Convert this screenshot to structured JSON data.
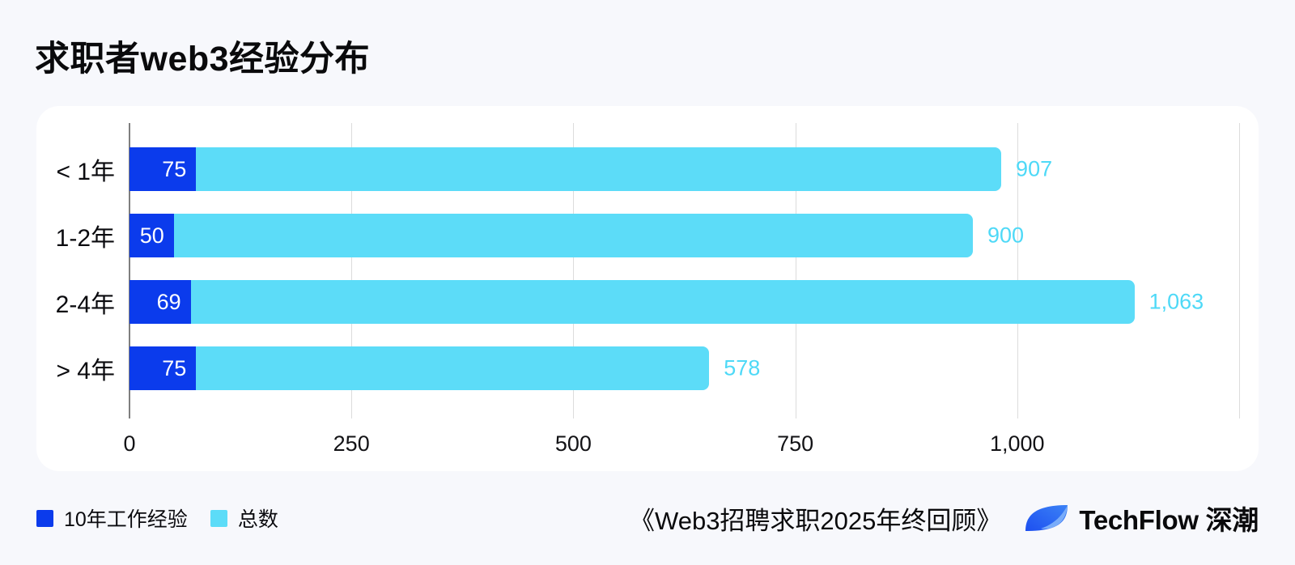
{
  "page": {
    "background": "#F7F8FC",
    "card_background": "#FFFFFF"
  },
  "header": {
    "title": "求职者web3经验分布"
  },
  "chart_data": {
    "type": "bar",
    "orientation": "horizontal",
    "stacked": true,
    "title": "求职者web3经验分布",
    "categories": [
      "< 1年",
      "1-2年",
      "2-4年",
      "> 4年"
    ],
    "series": [
      {
        "name": "10年工作经验",
        "color": "#0B3BEC",
        "values": [
          75,
          50,
          69,
          75
        ],
        "labels": [
          "75",
          "50",
          "69",
          "75"
        ],
        "label_color": "#FFFFFF"
      },
      {
        "name": "总数",
        "color": "#5CDCF8",
        "values": [
          907,
          900,
          1063,
          578
        ],
        "labels": [
          "907",
          "900",
          "1,063",
          "578"
        ],
        "label_color": "#4ED9F7"
      }
    ],
    "xlim": [
      0,
      1250
    ],
    "gridlines": [
      0,
      250,
      500,
      750,
      1000,
      1250
    ],
    "xticks": [
      {
        "value": 0,
        "label": "0"
      },
      {
        "value": 250,
        "label": "250"
      },
      {
        "value": 500,
        "label": "500"
      },
      {
        "value": 750,
        "label": "750"
      },
      {
        "value": 1000,
        "label": "1,000"
      }
    ],
    "grid": true,
    "legend_position": "bottom-left",
    "axis_line_color": "#7F7F7F",
    "gridline_color": "#DCDCDC"
  },
  "legend": {
    "items": [
      {
        "label": "10年工作经验",
        "color": "#0B3BEC"
      },
      {
        "label": "总数",
        "color": "#5CDCF8"
      }
    ]
  },
  "footer": {
    "source": "《Web3招聘求职2025年终回顾》",
    "brand": "TechFlow 深潮"
  }
}
